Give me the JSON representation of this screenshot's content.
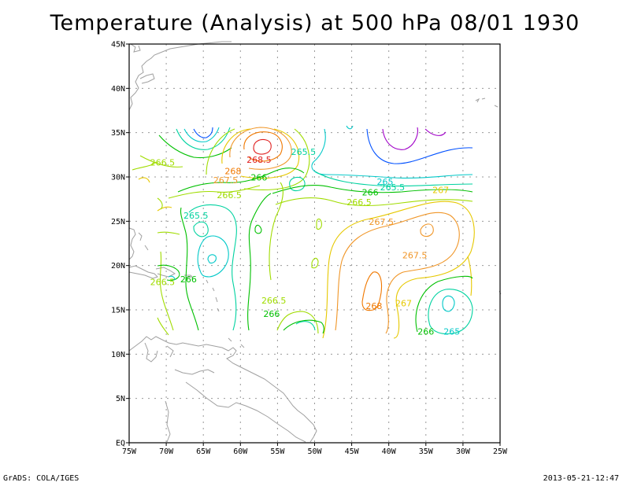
{
  "title": "Temperature (Analysis) at 500 hPa 08/01 1930",
  "footer": {
    "left": "GrADS: COLA/IGES",
    "right": "2013-05-21-12:47"
  },
  "lat_ticks": [
    "45N",
    "40N",
    "35N",
    "30N",
    "25N",
    "20N",
    "15N",
    "10N",
    "5N",
    "EQ"
  ],
  "lon_ticks": [
    "75W",
    "70W",
    "65W",
    "60W",
    "55W",
    "50W",
    "45W",
    "40W",
    "35W",
    "30W",
    "25W"
  ],
  "grid": true,
  "colors": {
    "frame": "#000000",
    "grid": "#999999",
    "coast": "#a0a0a0",
    "c2650": "#00c8c8",
    "c2655": "#00d2a0",
    "c2660": "#00c000",
    "c2665": "#a0dc00",
    "c2670": "#e6c800",
    "c2675": "#f09628",
    "c2680": "#f07800",
    "c2685": "#e02020",
    "cold1": "#0050ff",
    "cold2": "#a000c8"
  },
  "contour_labels": [
    {
      "text": "265.5",
      "level": "c2655",
      "lon": -51.5,
      "lat": 32.5
    },
    {
      "text": "268.5",
      "level": "c2685",
      "lon": -57.5,
      "lat": 31.6
    },
    {
      "text": "268",
      "level": "c2680",
      "lon": -61.0,
      "lat": 30.3
    },
    {
      "text": "267.5",
      "level": "c2675",
      "lon": -62.0,
      "lat": 29.3
    },
    {
      "text": "266",
      "level": "c2660",
      "lon": -57.5,
      "lat": 29.6
    },
    {
      "text": "266.5",
      "level": "c2665",
      "lon": -70.5,
      "lat": 31.3
    },
    {
      "text": "266.5",
      "level": "c2665",
      "lon": -61.5,
      "lat": 27.6
    },
    {
      "text": "266",
      "level": "c2660",
      "lon": -42.5,
      "lat": 27.9
    },
    {
      "text": "265.5",
      "level": "c2655",
      "lon": -39.5,
      "lat": 28.5
    },
    {
      "text": "265",
      "level": "c2650",
      "lon": -40.5,
      "lat": 29.1
    },
    {
      "text": "267",
      "level": "c2670",
      "lon": -33.0,
      "lat": 28.2
    },
    {
      "text": "266.5",
      "level": "c2665",
      "lon": -44.0,
      "lat": 26.8
    },
    {
      "text": "265.5",
      "level": "c2655",
      "lon": -66.0,
      "lat": 25.3
    },
    {
      "text": "267.5",
      "level": "c2675",
      "lon": -41.0,
      "lat": 24.6
    },
    {
      "text": "267.5",
      "level": "c2675",
      "lon": -36.5,
      "lat": 20.8
    },
    {
      "text": "266.5",
      "level": "c2665",
      "lon": -70.5,
      "lat": 17.8
    },
    {
      "text": "266",
      "level": "c2660",
      "lon": -67.0,
      "lat": 18.1
    },
    {
      "text": "266.5",
      "level": "c2665",
      "lon": -55.5,
      "lat": 15.7
    },
    {
      "text": "266",
      "level": "c2660",
      "lon": -55.8,
      "lat": 14.2
    },
    {
      "text": "268",
      "level": "c2680",
      "lon": -42.0,
      "lat": 15.1
    },
    {
      "text": "267",
      "level": "c2670",
      "lon": -38.0,
      "lat": 15.4
    },
    {
      "text": "266",
      "level": "c2660",
      "lon": -35.0,
      "lat": 12.2
    },
    {
      "text": "265",
      "level": "c2650",
      "lon": -31.5,
      "lat": 12.2
    }
  ]
}
